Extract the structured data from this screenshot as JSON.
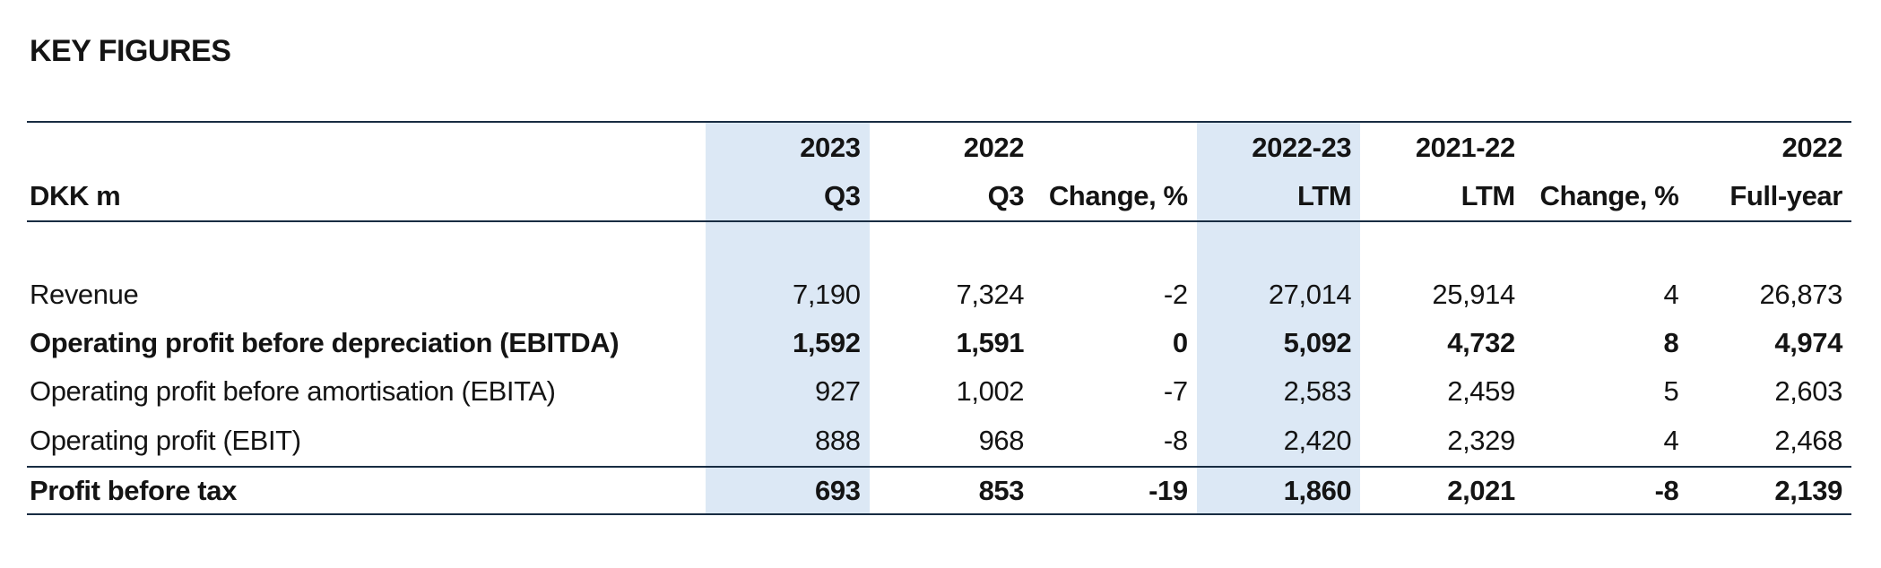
{
  "page": {
    "title": "KEY FIGURES"
  },
  "colors": {
    "highlight_band": "#dce8f5",
    "rule": "#182c42",
    "text": "#141414"
  },
  "table": {
    "header_row1": [
      "",
      "2023",
      "2022",
      "",
      "2022-23",
      "2021-22",
      "",
      "2022"
    ],
    "header_row2": [
      "DKK m",
      "Q3",
      "Q3",
      "Change, %",
      "LTM",
      "LTM",
      "Change, %",
      "Full-year"
    ],
    "highlighted_columns": [
      "2023 Q3",
      "2022-23 LTM"
    ],
    "rows": [
      {
        "label": "Revenue",
        "bold": false,
        "values": [
          "7,190",
          "7,324",
          "-2",
          "27,014",
          "25,914",
          "4",
          "26,873"
        ]
      },
      {
        "label": "Operating profit before depreciation (EBITDA)",
        "bold": true,
        "values": [
          "1,592",
          "1,591",
          "0",
          "5,092",
          "4,732",
          "8",
          "4,974"
        ]
      },
      {
        "label": "Operating profit before amortisation (EBITA)",
        "bold": false,
        "values": [
          "927",
          "1,002",
          "-7",
          "2,583",
          "2,459",
          "5",
          "2,603"
        ]
      },
      {
        "label": "Operating profit (EBIT)",
        "bold": false,
        "values": [
          "888",
          "968",
          "-8",
          "2,420",
          "2,329",
          "4",
          "2,468"
        ]
      },
      {
        "label": "Profit before tax",
        "bold": true,
        "values": [
          "693",
          "853",
          "-19",
          "1,860",
          "2,021",
          "-8",
          "2,139"
        ]
      }
    ]
  }
}
